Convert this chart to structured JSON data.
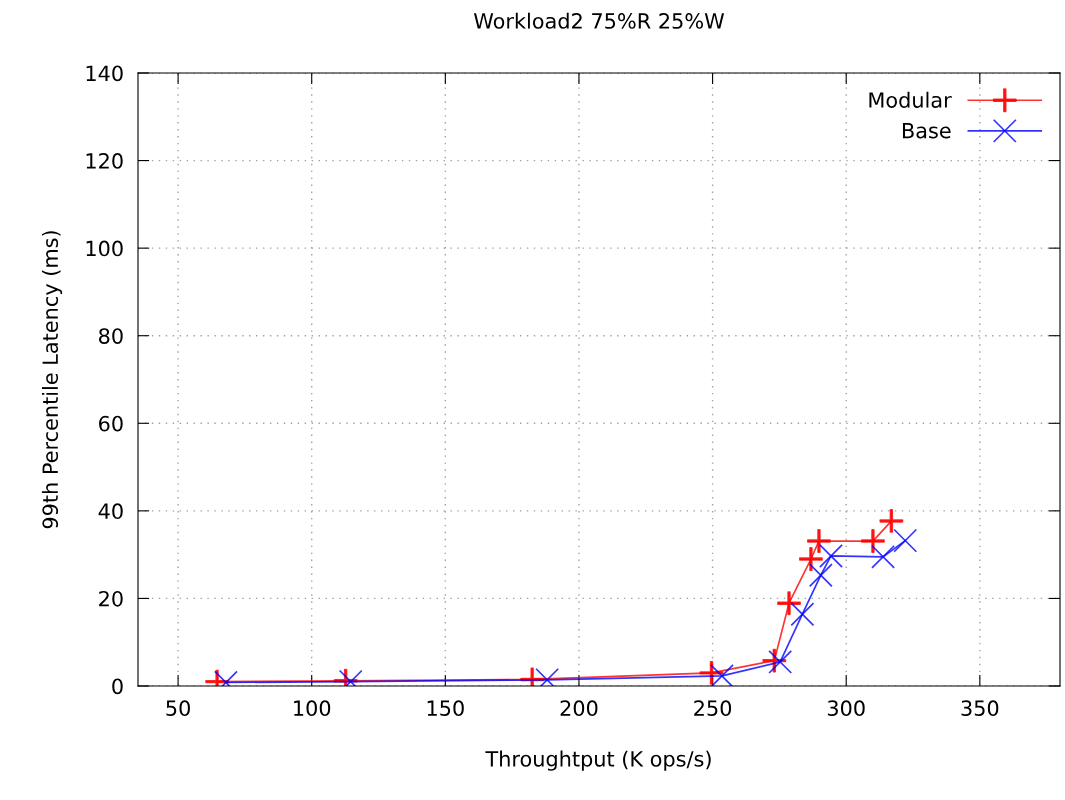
{
  "chart_data": {
    "type": "line",
    "title": "Workload2 75%R 25%W",
    "xlabel": "Throughtput (K ops/s)",
    "ylabel": "99th Percentile Latency (ms)",
    "xlim": [
      35,
      380
    ],
    "xticks": [
      50,
      100,
      150,
      200,
      250,
      300,
      350
    ],
    "ylim": [
      0,
      140
    ],
    "yticks": [
      0,
      20,
      40,
      60,
      80,
      100,
      120,
      140
    ],
    "grid": true,
    "legend": "top right",
    "series": [
      {
        "name": "Modular",
        "color": "#ff0000",
        "marker": "cross",
        "x": [
          64.6,
          112.7,
          182.5,
          249.6,
          273.1,
          278.6,
          286.8,
          289.8,
          310.0,
          316.9
        ],
        "values": [
          1.0,
          1.2,
          1.5,
          3.0,
          5.8,
          18.9,
          29.0,
          33.1,
          33.1,
          37.7
        ]
      },
      {
        "name": "Base",
        "color": "#0000ff",
        "marker": "x",
        "x": [
          67.9,
          114.6,
          188.1,
          253.5,
          275.3,
          283.6,
          290.5,
          294.3,
          313.8,
          322.1
        ],
        "values": [
          0.8,
          1.0,
          1.4,
          2.3,
          5.5,
          16.4,
          25.3,
          29.7,
          29.5,
          33.2
        ]
      }
    ]
  }
}
